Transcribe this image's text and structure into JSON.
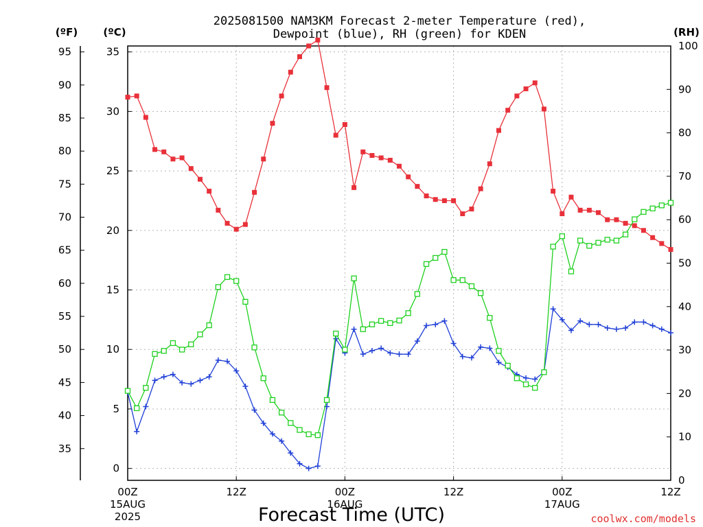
{
  "chart_data": {
    "type": "line",
    "title_lines": [
      "2025081500 NAM3KM Forecast 2-meter Temperature (red),",
      "Dewpoint (blue), RH (green) for KDEN"
    ],
    "unit_labels": {
      "fahrenheit": "(ºF)",
      "celsius": "(ºC)",
      "rh": "(RH)"
    },
    "xlabel": "Forecast Time (UTC)",
    "credit": "coolwx.com/models",
    "x_hours_range": [
      0,
      60
    ],
    "x_ticks": [
      {
        "hour": 0,
        "lines": [
          "00Z",
          "15AUG",
          "2025"
        ]
      },
      {
        "hour": 12,
        "lines": [
          "12Z"
        ]
      },
      {
        "hour": 24,
        "lines": [
          "00Z",
          "16AUG"
        ]
      },
      {
        "hour": 36,
        "lines": [
          "12Z"
        ]
      },
      {
        "hour": 48,
        "lines": [
          "00Z",
          "17AUG"
        ]
      },
      {
        "hour": 60,
        "lines": [
          "12Z"
        ]
      }
    ],
    "y_celsius": {
      "range": [
        -1,
        35.5
      ],
      "ticks": [
        0,
        5,
        10,
        15,
        20,
        25,
        30,
        35
      ]
    },
    "y_fahrenheit": {
      "ticks": [
        35,
        40,
        45,
        50,
        55,
        60,
        65,
        70,
        75,
        80,
        85,
        90,
        95
      ]
    },
    "y_rh": {
      "range": [
        0,
        100
      ],
      "ticks": [
        0,
        10,
        20,
        30,
        40,
        50,
        60,
        70,
        80,
        90,
        100
      ]
    },
    "grid": true,
    "series": [
      {
        "name": "Temperature",
        "color": "#e8313a",
        "axis": "celsius",
        "marker": "filled-square",
        "x": [
          0,
          1,
          2,
          3,
          4,
          5,
          6,
          7,
          8,
          9,
          10,
          11,
          12,
          13,
          14,
          15,
          16,
          17,
          18,
          19,
          20,
          21,
          22,
          23,
          24,
          25,
          26,
          27,
          28,
          29,
          30,
          31,
          32,
          33,
          34,
          35,
          36,
          37,
          38,
          39,
          40,
          41,
          42,
          43,
          44,
          45,
          46,
          47,
          48,
          49,
          50,
          51,
          52,
          53,
          54,
          55,
          56,
          57,
          58,
          59,
          60
        ],
        "values": [
          31.2,
          31.3,
          29.5,
          26.8,
          26.6,
          26.0,
          26.1,
          25.2,
          24.3,
          23.3,
          21.7,
          20.6,
          20.1,
          20.5,
          23.2,
          26.0,
          29.0,
          31.3,
          33.3,
          34.6,
          35.5,
          36.0,
          32.0,
          28.0,
          28.9,
          23.6,
          26.6,
          26.3,
          26.1,
          25.9,
          25.4,
          24.5,
          23.7,
          22.9,
          22.6,
          22.5,
          22.5,
          21.4,
          21.8,
          23.5,
          25.6,
          28.4,
          30.1,
          31.3,
          31.9,
          32.4,
          30.2,
          23.3,
          21.4,
          22.8,
          21.7,
          21.7,
          21.5,
          20.9,
          20.9,
          20.6,
          20.4,
          20.0,
          19.4,
          18.9,
          18.4
        ]
      },
      {
        "name": "Dewpoint",
        "color": "#1f3fd6",
        "axis": "celsius",
        "marker": "plus",
        "x": [
          0,
          1,
          2,
          3,
          4,
          5,
          6,
          7,
          8,
          9,
          10,
          11,
          12,
          13,
          14,
          15,
          16,
          17,
          18,
          19,
          20,
          21,
          22,
          23,
          24,
          25,
          26,
          27,
          28,
          29,
          30,
          31,
          32,
          33,
          34,
          35,
          36,
          37,
          38,
          39,
          40,
          41,
          42,
          43,
          44,
          45,
          46,
          47,
          48,
          49,
          50,
          51,
          52,
          53,
          54,
          55,
          56,
          57,
          58,
          59,
          60
        ],
        "values": [
          6.4,
          3.1,
          5.2,
          7.4,
          7.7,
          7.9,
          7.2,
          7.1,
          7.4,
          7.7,
          9.1,
          9.0,
          8.2,
          6.9,
          4.9,
          3.8,
          2.9,
          2.3,
          1.3,
          0.4,
          0.0,
          0.2,
          5.2,
          10.9,
          9.7,
          11.7,
          9.6,
          9.9,
          10.1,
          9.7,
          9.6,
          9.6,
          10.7,
          12.0,
          12.1,
          12.4,
          10.5,
          9.4,
          9.3,
          10.2,
          10.1,
          8.9,
          8.5,
          7.9,
          7.6,
          7.5,
          8.1,
          13.4,
          12.5,
          11.6,
          12.4,
          12.1,
          12.1,
          11.8,
          11.7,
          11.8,
          12.3,
          12.3,
          12.0,
          11.7,
          11.4
        ]
      },
      {
        "name": "RH",
        "color": "#1ed01e",
        "axis": "rh",
        "marker": "open-square",
        "x": [
          0,
          1,
          2,
          3,
          4,
          5,
          6,
          7,
          8,
          9,
          10,
          11,
          12,
          13,
          14,
          15,
          16,
          17,
          18,
          19,
          20,
          21,
          22,
          23,
          24,
          25,
          26,
          27,
          28,
          29,
          30,
          31,
          32,
          33,
          34,
          35,
          36,
          37,
          38,
          39,
          40,
          41,
          42,
          43,
          44,
          45,
          46,
          47,
          48,
          49,
          50,
          51,
          52,
          53,
          54,
          55,
          56,
          57,
          58,
          59,
          60
        ],
        "values": [
          20.6,
          16.6,
          21.3,
          29.1,
          29.8,
          31.6,
          30.1,
          31.3,
          33.6,
          35.7,
          44.5,
          46.8,
          45.9,
          41.1,
          30.6,
          23.5,
          18.5,
          15.6,
          13.2,
          11.6,
          10.6,
          10.4,
          18.5,
          33.8,
          30.1,
          46.5,
          34.8,
          35.9,
          36.7,
          36.2,
          36.8,
          38.5,
          42.9,
          49.8,
          51.2,
          52.6,
          46.1,
          46.1,
          44.7,
          43.1,
          37.4,
          29.8,
          26.4,
          23.5,
          22.1,
          21.3,
          24.9,
          53.8,
          56.2,
          48.1,
          55.2,
          54.0,
          54.7,
          55.4,
          55.2,
          56.6,
          60.1,
          61.8,
          62.6,
          63.3,
          63.9
        ]
      }
    ]
  }
}
